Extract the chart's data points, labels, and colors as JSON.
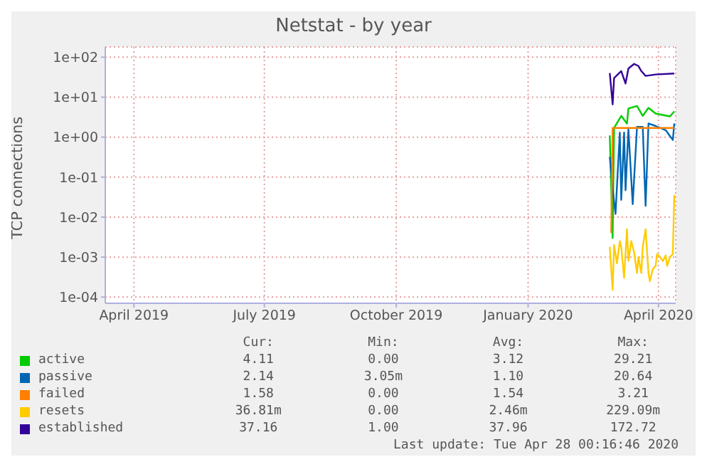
{
  "chart_data": {
    "type": "line",
    "title": "Netstat - by year",
    "ylabel": "TCP connections",
    "log": "y",
    "grid": true,
    "legend": "bottom",
    "marker": "none",
    "xlim": [
      "2019-03-27",
      "2020-04-28"
    ],
    "xticks": [
      {
        "value": "2019-04-16",
        "label": "April 2019"
      },
      {
        "value": "2019-07-16",
        "label": "July 2019"
      },
      {
        "value": "2019-10-16",
        "label": "October 2019"
      },
      {
        "value": "2020-01-16",
        "label": "January 2020"
      },
      {
        "value": "2020-04-16",
        "label": "April 2020"
      }
    ],
    "ylim": [
      7e-05,
      180
    ],
    "yticks": [
      {
        "value": 0.0001,
        "label": "1e-04"
      },
      {
        "value": 0.001,
        "label": "1e-03"
      },
      {
        "value": 0.01,
        "label": "1e-02"
      },
      {
        "value": 0.1,
        "label": "1e-01"
      },
      {
        "value": 1,
        "label": "1e+00"
      },
      {
        "value": 10,
        "label": "1e+01"
      },
      {
        "value": 100,
        "label": "1e+02"
      }
    ],
    "series": [
      {
        "name": "active",
        "color": "#00cc00",
        "x": [
          "2020-03-13",
          "2020-03-15",
          "2020-03-16",
          "2020-03-21",
          "2020-03-25",
          "2020-03-26",
          "2020-04-01",
          "2020-04-05",
          "2020-04-09",
          "2020-04-14",
          "2020-04-24",
          "2020-04-27"
        ],
        "values": [
          1.1,
          0.003,
          1.7,
          3.4,
          2.2,
          5.2,
          6,
          3.4,
          5.4,
          3.9,
          3.3,
          4.4
        ]
      },
      {
        "name": "passive",
        "color": "#0066b3",
        "x": [
          "2020-03-13",
          "2020-03-15",
          "2020-03-17",
          "2020-03-20",
          "2020-03-21",
          "2020-03-23",
          "2020-03-24",
          "2020-03-26",
          "2020-03-29",
          "2020-04-01",
          "2020-04-05",
          "2020-04-07",
          "2020-04-09",
          "2020-04-14",
          "2020-04-21",
          "2020-04-26",
          "2020-04-27"
        ],
        "values": [
          0.32,
          0.05,
          0.012,
          1.3,
          0.027,
          1.3,
          0.047,
          1.6,
          0.021,
          1.8,
          1.8,
          0.019,
          2.2,
          1.9,
          1.5,
          0.85,
          2.2
        ]
      },
      {
        "name": "failed",
        "color": "#ff8000",
        "x": [
          "2020-03-14",
          "2020-03-15",
          "2020-03-16",
          "2020-04-01",
          "2020-04-14",
          "2020-04-27"
        ],
        "values": [
          0.004,
          1.7,
          1.7,
          1.7,
          1.7,
          1.7
        ]
      },
      {
        "name": "resets",
        "color": "#ffcc00",
        "x": [
          "2020-03-13",
          "2020-03-15",
          "2020-03-16",
          "2020-03-18",
          "2020-03-20",
          "2020-03-21",
          "2020-03-23",
          "2020-03-25",
          "2020-03-26",
          "2020-03-28",
          "2020-03-30",
          "2020-04-01",
          "2020-04-02",
          "2020-04-04",
          "2020-04-05",
          "2020-04-07",
          "2020-04-09",
          "2020-04-10",
          "2020-04-12",
          "2020-04-14",
          "2020-04-15",
          "2020-04-17",
          "2020-04-19",
          "2020-04-21",
          "2020-04-22",
          "2020-04-24",
          "2020-04-26",
          "2020-04-27"
        ],
        "values": [
          0.0018,
          0.00015,
          0.002,
          0.0007,
          0.0025,
          0.0018,
          0.0003,
          0.005,
          0.0008,
          0.0025,
          0.0013,
          0.0004,
          0.001,
          0.0004,
          0.0018,
          0.005,
          0.0004,
          0.00025,
          0.0005,
          0.0006,
          0.0012,
          0.001,
          0.0008,
          0.0011,
          0.0006,
          0.001,
          0.0012,
          0.036
        ]
      },
      {
        "name": "established",
        "color": "#330099",
        "x": [
          "2020-03-13",
          "2020-03-15",
          "2020-03-16",
          "2020-03-21",
          "2020-03-24",
          "2020-03-26",
          "2020-03-30",
          "2020-04-02",
          "2020-04-04",
          "2020-04-07",
          "2020-04-14",
          "2020-04-27"
        ],
        "values": [
          40,
          6.6,
          30,
          45,
          22,
          52,
          68,
          60,
          45,
          34,
          37,
          39
        ]
      }
    ],
    "annotations": [
      "Cur:",
      "Min:",
      "Avg:",
      "Max:",
      "4.11",
      "0.00",
      "3.12",
      "29.21",
      "2.14",
      "3.05m",
      "1.10",
      "20.64",
      "1.58",
      "0.00",
      "1.54",
      "3.21",
      "36.81m",
      "0.00",
      "2.46m",
      "229.09m",
      "37.16",
      "1.00",
      "37.96",
      "172.72",
      "Last update: Tue Apr 28 00:16:46 2020"
    ]
  }
}
